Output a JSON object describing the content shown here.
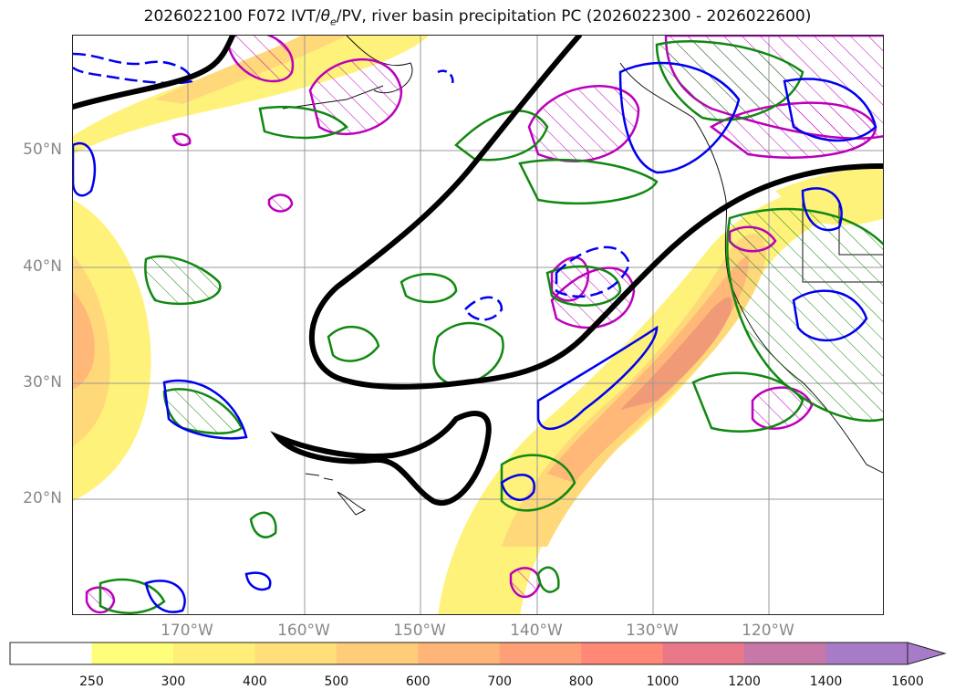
{
  "title": {
    "prefix": "2026022100 F072 IVT/",
    "theta_symbol": "θ",
    "theta_sub": "e",
    "suffix": "/PV, river basin precipitation PC (2026022300 - 2026022600)"
  },
  "axes": {
    "lat_labels": [
      "50°N",
      "40°N",
      "30°N",
      "20°N"
    ],
    "lon_labels": [
      "170°W",
      "160°W",
      "150°W",
      "140°W",
      "130°W",
      "120°W"
    ]
  },
  "colorbar": {
    "levels": [
      "250",
      "300",
      "400",
      "500",
      "600",
      "700",
      "800",
      "1000",
      "1200",
      "1400",
      "1600"
    ],
    "colors": [
      "#ffffff",
      "#fffe7a",
      "#ffee77",
      "#ffdf7a",
      "#ffcc7a",
      "#ffb577",
      "#ff9f77",
      "#ff8877",
      "#e97888",
      "#c777a8",
      "#a77bc8"
    ]
  },
  "legend_colors": {
    "ivt_low": "#fff27a",
    "ivt_mid": "#ffc070",
    "ivt_high": "#f08a6e",
    "pv_line": "#000000",
    "green_contour": "#118811",
    "blue_contour": "#0000ee",
    "magenta_contour": "#bb00bb"
  }
}
